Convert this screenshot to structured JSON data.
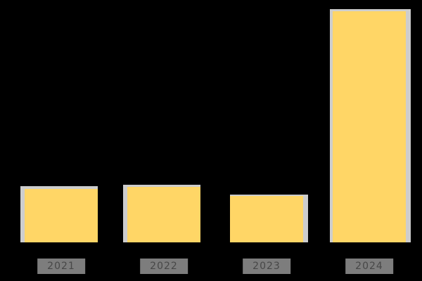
{
  "chart_data": {
    "type": "bar",
    "title": "",
    "xlabel": "",
    "ylabel": "",
    "categories": [
      "2021",
      "2022",
      "2023",
      "2024"
    ],
    "values": [
      23,
      24,
      20,
      100
    ],
    "ylim": [
      0,
      100
    ],
    "grid": false,
    "legend": false,
    "bar_color": "#FFD666",
    "bar_edge_color": "#CDCDCD",
    "tick_chip_color": "#7D7D7D",
    "tick_text_color": "#474747",
    "background_color": "#000000"
  }
}
